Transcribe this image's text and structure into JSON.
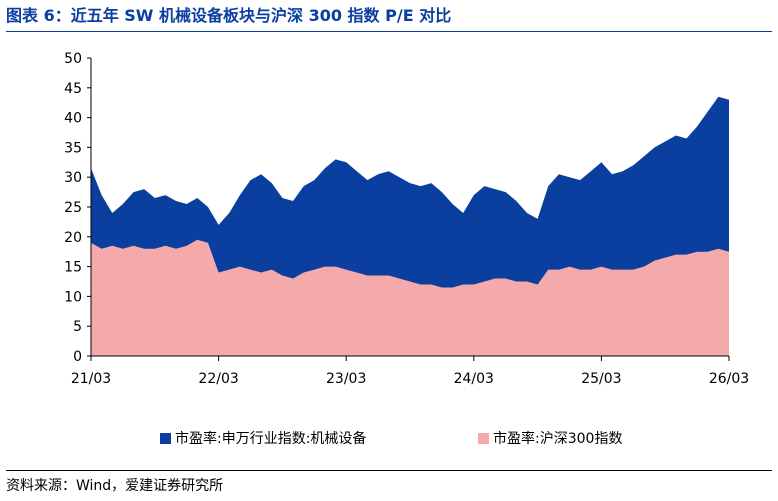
{
  "title": "图表 6：近五年 SW 机械设备板块与沪深 300 指数 P/E 对比",
  "source": "资料来源：Wind，爱建证券研究所",
  "colors": {
    "title": "#0A3FA0",
    "series_machinery": "#0A3FA0",
    "series_csi300": "#F4A9AB"
  },
  "chart_data": {
    "type": "area",
    "title": "",
    "xlabel": "",
    "ylabel": "",
    "ylim": [
      0,
      50
    ],
    "yticks": [
      0,
      5,
      10,
      15,
      20,
      25,
      30,
      35,
      40,
      45,
      50
    ],
    "xticks": [
      "21/03",
      "22/03",
      "23/03",
      "24/03",
      "25/03",
      "26/03"
    ],
    "x_range": [
      "2021-03",
      "2026-03"
    ],
    "grid": false,
    "legend_position": "bottom",
    "x": [
      "2021-03",
      "2021-04",
      "2021-05",
      "2021-06",
      "2021-07",
      "2021-08",
      "2021-09",
      "2021-10",
      "2021-11",
      "2021-12",
      "2022-01",
      "2022-02",
      "2022-03",
      "2022-04",
      "2022-05",
      "2022-06",
      "2022-07",
      "2022-08",
      "2022-09",
      "2022-10",
      "2022-11",
      "2022-12",
      "2023-01",
      "2023-02",
      "2023-03",
      "2023-04",
      "2023-05",
      "2023-06",
      "2023-07",
      "2023-08",
      "2023-09",
      "2023-10",
      "2023-11",
      "2023-12",
      "2024-01",
      "2024-02",
      "2024-03",
      "2024-04",
      "2024-05",
      "2024-06",
      "2024-07",
      "2024-08",
      "2024-09",
      "2024-10",
      "2024-11",
      "2024-12",
      "2025-01",
      "2025-02",
      "2025-03",
      "2025-04",
      "2025-05",
      "2025-06",
      "2025-07",
      "2025-08",
      "2025-09",
      "2025-10",
      "2025-11",
      "2025-12",
      "2026-01",
      "2026-02",
      "2026-03"
    ],
    "series": [
      {
        "name": "市盈率:申万行业指数:机械设备",
        "color": "#0A3FA0",
        "values": [
          31.5,
          27.0,
          24.0,
          25.5,
          27.5,
          28.0,
          26.5,
          27.0,
          26.0,
          25.5,
          26.5,
          25.0,
          22.0,
          24.0,
          27.0,
          29.5,
          30.5,
          29.0,
          26.5,
          26.0,
          28.5,
          29.5,
          31.5,
          33.0,
          32.5,
          31.0,
          29.5,
          30.5,
          31.0,
          30.0,
          29.0,
          28.5,
          29.0,
          27.5,
          25.5,
          24.0,
          27.0,
          28.5,
          28.0,
          27.5,
          26.0,
          24.0,
          23.0,
          28.5,
          30.5,
          30.0,
          29.5,
          31.0,
          32.5,
          30.5,
          31.0,
          32.0,
          33.5,
          35.0,
          36.0,
          37.0,
          36.5,
          38.5,
          41.0,
          43.5,
          43.0
        ]
      },
      {
        "name": "市盈率:沪深300指数",
        "color": "#F4A9AB",
        "values": [
          19.0,
          18.0,
          18.5,
          18.0,
          18.5,
          18.0,
          18.0,
          18.5,
          18.0,
          18.5,
          19.5,
          19.0,
          14.0,
          14.5,
          15.0,
          14.5,
          14.0,
          14.5,
          13.5,
          13.0,
          14.0,
          14.5,
          15.0,
          15.0,
          14.5,
          14.0,
          13.5,
          13.5,
          13.5,
          13.0,
          12.5,
          12.0,
          12.0,
          11.5,
          11.5,
          12.0,
          12.0,
          12.5,
          13.0,
          13.0,
          12.5,
          12.5,
          12.0,
          14.5,
          14.5,
          15.0,
          14.5,
          14.5,
          15.0,
          14.5,
          14.5,
          14.5,
          15.0,
          16.0,
          16.5,
          17.0,
          17.0,
          17.5,
          17.5,
          18.0,
          17.5
        ]
      }
    ]
  }
}
